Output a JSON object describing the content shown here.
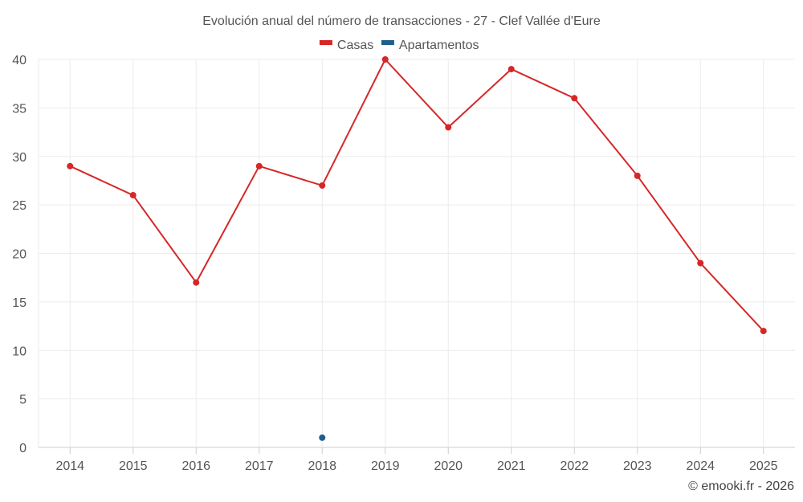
{
  "chart_data": {
    "type": "line",
    "title": "Evolución anual del número de transacciones - 27 - Clef Vallée d'Eure",
    "xlabel": "",
    "ylabel": "",
    "categories": [
      "2014",
      "2015",
      "2016",
      "2017",
      "2018",
      "2019",
      "2020",
      "2021",
      "2022",
      "2023",
      "2024",
      "2025"
    ],
    "ylim": [
      0,
      40
    ],
    "yticks": [
      0,
      5,
      10,
      15,
      20,
      25,
      30,
      35,
      40
    ],
    "grid": true,
    "legend_position": "top-center",
    "series": [
      {
        "name": "Casas",
        "color": "#d62728",
        "values": [
          29,
          26,
          17,
          29,
          27,
          40,
          33,
          39,
          36,
          28,
          19,
          12
        ]
      },
      {
        "name": "Apartamentos",
        "color": "#1f5f8b",
        "values": [
          null,
          null,
          null,
          null,
          1,
          null,
          null,
          null,
          null,
          null,
          null,
          null
        ]
      }
    ]
  },
  "credit": "© emooki.fr - 2026"
}
